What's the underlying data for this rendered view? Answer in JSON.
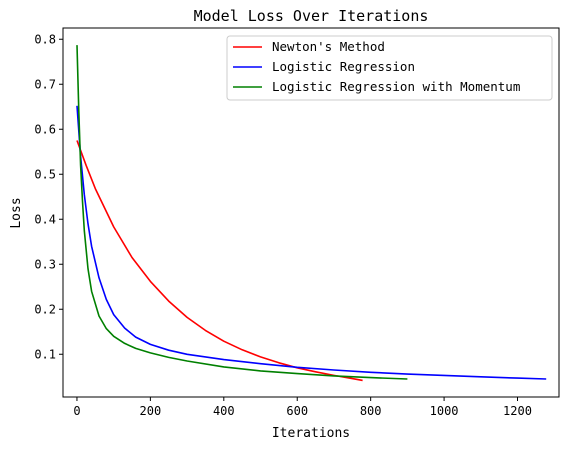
{
  "chart_data": {
    "type": "line",
    "title": "Model Loss Over Iterations",
    "xlabel": "Iterations",
    "ylabel": "Loss",
    "xlim": [
      -38,
      1313
    ],
    "ylim": [
      0.005,
      0.825
    ],
    "xticks": [
      0,
      200,
      400,
      600,
      800,
      1000,
      1200
    ],
    "yticks": [
      0.1,
      0.2,
      0.3,
      0.4,
      0.5,
      0.6,
      0.7,
      0.8
    ],
    "grid": false,
    "legend_position": "top-right",
    "series": [
      {
        "name": "Newton's Method",
        "color": "#ff0000",
        "x": [
          0,
          25,
          50,
          100,
          150,
          200,
          250,
          300,
          350,
          400,
          450,
          500,
          550,
          600,
          650,
          700,
          750,
          778
        ],
        "y": [
          0.575,
          0.52,
          0.468,
          0.383,
          0.315,
          0.262,
          0.218,
          0.182,
          0.153,
          0.129,
          0.11,
          0.094,
          0.081,
          0.07,
          0.061,
          0.053,
          0.046,
          0.042
        ]
      },
      {
        "name": "Logistic Regression",
        "color": "#0000ff",
        "x": [
          0,
          10,
          20,
          30,
          40,
          60,
          80,
          100,
          130,
          160,
          200,
          250,
          300,
          400,
          500,
          600,
          700,
          800,
          900,
          1000,
          1100,
          1200,
          1278
        ],
        "y": [
          0.652,
          0.54,
          0.455,
          0.39,
          0.34,
          0.27,
          0.222,
          0.188,
          0.158,
          0.138,
          0.122,
          0.109,
          0.1,
          0.088,
          0.079,
          0.071,
          0.065,
          0.06,
          0.056,
          0.053,
          0.05,
          0.047,
          0.045
        ]
      },
      {
        "name": "Logistic Regression with Momentum",
        "color": "#008000",
        "x": [
          0,
          5,
          10,
          15,
          20,
          30,
          40,
          60,
          80,
          100,
          130,
          160,
          200,
          250,
          300,
          400,
          500,
          600,
          700,
          800,
          900
        ],
        "y": [
          0.787,
          0.64,
          0.52,
          0.44,
          0.375,
          0.29,
          0.24,
          0.185,
          0.157,
          0.14,
          0.124,
          0.113,
          0.103,
          0.093,
          0.085,
          0.072,
          0.063,
          0.057,
          0.052,
          0.048,
          0.045
        ]
      }
    ]
  }
}
